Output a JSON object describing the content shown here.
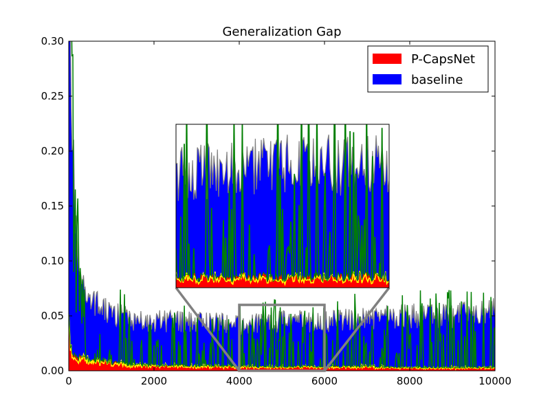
{
  "chart_data": {
    "type": "area",
    "title": "Generalization Gap",
    "xlabel": "",
    "ylabel": "",
    "xlim": [
      0,
      10000
    ],
    "ylim": [
      0,
      0.3
    ],
    "xticks": [
      0,
      2000,
      4000,
      6000,
      8000,
      10000
    ],
    "yticks": [
      0.0,
      0.05,
      0.1,
      0.15,
      0.2,
      0.25,
      0.3
    ],
    "xtick_labels": [
      "0",
      "2000",
      "4000",
      "6000",
      "8000",
      "10000"
    ],
    "ytick_labels": [
      "0.00",
      "0.05",
      "0.10",
      "0.15",
      "0.20",
      "0.25",
      "0.30"
    ],
    "legend": {
      "placement": "top-right"
    },
    "grid": false,
    "series": [
      {
        "name": "P-CapsNet",
        "color": "#ff0000",
        "note_points": [
          [
            0,
            0.042
          ],
          [
            50,
            0.02
          ],
          [
            100,
            0.015
          ],
          [
            300,
            0.012
          ],
          [
            600,
            0.01
          ],
          [
            1000,
            0.008
          ],
          [
            1500,
            0.006
          ],
          [
            2000,
            0.005
          ],
          [
            3000,
            0.005
          ],
          [
            4000,
            0.004
          ],
          [
            5000,
            0.004
          ],
          [
            6000,
            0.004
          ],
          [
            7000,
            0.004
          ],
          [
            8000,
            0.003
          ],
          [
            9000,
            0.003
          ],
          [
            10000,
            0.003
          ]
        ]
      },
      {
        "name": "baseline",
        "color": "#0000ff",
        "note_points": [
          [
            0,
            0.3
          ],
          [
            60,
            0.27
          ],
          [
            150,
            0.13
          ],
          [
            300,
            0.08
          ],
          [
            500,
            0.065
          ],
          [
            800,
            0.055
          ],
          [
            1200,
            0.05
          ],
          [
            1600,
            0.045
          ],
          [
            2000,
            0.045
          ],
          [
            3000,
            0.045
          ],
          [
            4000,
            0.042
          ],
          [
            5000,
            0.045
          ],
          [
            6000,
            0.045
          ],
          [
            7000,
            0.048
          ],
          [
            8000,
            0.05
          ],
          [
            9000,
            0.05
          ],
          [
            10000,
            0.055
          ]
        ]
      }
    ],
    "inset": {
      "xlim": [
        4000,
        6000
      ],
      "ylim": [
        0,
        0.06
      ]
    }
  },
  "colors": {
    "pcaps_fill": "#ff0000",
    "baseline_fill": "#0000ff",
    "gray_line": "#808080",
    "green_line": "#007f00",
    "yellow_line": "#ffff00",
    "zoom_marker": "#808080"
  }
}
